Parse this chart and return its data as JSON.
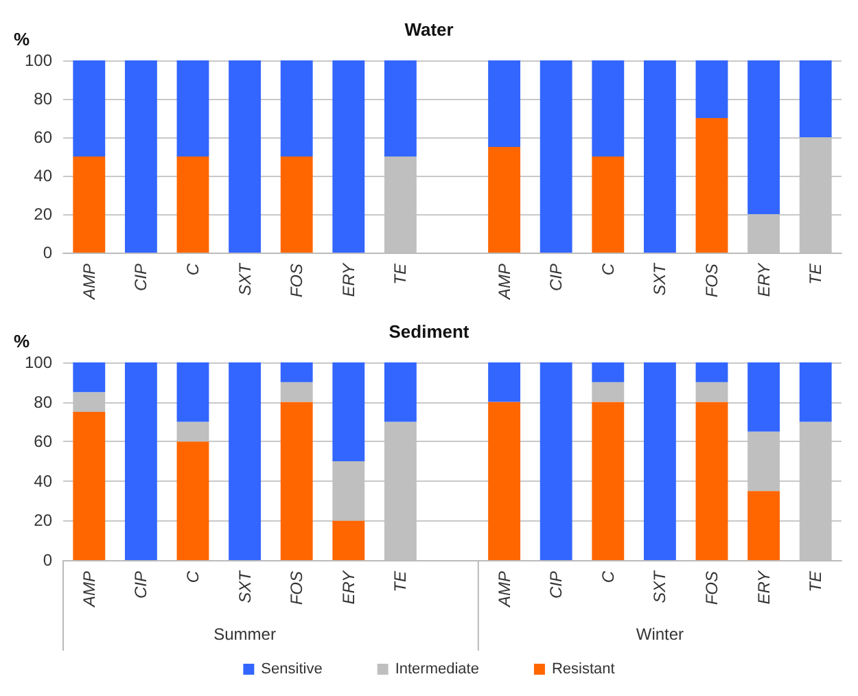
{
  "chart_data": [
    {
      "type": "bar",
      "title": "Water",
      "ylabel": "%",
      "stacked": true,
      "grid": "y",
      "legend": false,
      "categories": [
        "AMP",
        "CIP",
        "C",
        "SXT",
        "FOS",
        "ERY",
        "TE",
        null,
        "AMP",
        "CIP",
        "C",
        "SXT",
        "FOS",
        "ERY",
        "TE"
      ],
      "ylim": [
        0,
        100
      ],
      "yticks": [
        0,
        20,
        40,
        60,
        80,
        100
      ],
      "series": [
        {
          "color": "#ff6600",
          "values": [
            50,
            0,
            50,
            0,
            50,
            0,
            0,
            null,
            55,
            0,
            50,
            0,
            70,
            0,
            0
          ]
        },
        {
          "color": "#bfbfbf",
          "values": [
            0,
            0,
            0,
            0,
            0,
            0,
            50,
            null,
            0,
            0,
            0,
            0,
            0,
            20,
            60
          ]
        },
        {
          "color": "#3366ff",
          "values": [
            50,
            100,
            50,
            100,
            50,
            100,
            50,
            null,
            45,
            100,
            50,
            100,
            30,
            80,
            40
          ]
        }
      ]
    },
    {
      "type": "bar",
      "title": "Sediment",
      "ylabel": "%",
      "stacked": true,
      "grid": "y",
      "legend": "bottom",
      "categories": [
        "AMP",
        "CIP",
        "C",
        "SXT",
        "FOS",
        "ERY",
        "TE",
        null,
        "AMP",
        "CIP",
        "C",
        "SXT",
        "FOS",
        "ERY",
        "TE"
      ],
      "ylim": [
        0,
        100
      ],
      "yticks": [
        0,
        20,
        40,
        60,
        80,
        100
      ],
      "annotations": [
        "Summer",
        "Winter"
      ],
      "series": [
        {
          "name": "Resistant",
          "color": "#ff6600",
          "values": [
            75,
            0,
            60,
            0,
            80,
            20,
            0,
            null,
            80,
            0,
            80,
            0,
            80,
            35,
            0
          ]
        },
        {
          "name": "Intermediate",
          "color": "#bfbfbf",
          "values": [
            10,
            0,
            10,
            0,
            10,
            30,
            70,
            null,
            0,
            0,
            10,
            0,
            10,
            30,
            70
          ]
        },
        {
          "name": "Sensitive",
          "color": "#3366ff",
          "values": [
            15,
            100,
            30,
            100,
            10,
            50,
            30,
            null,
            20,
            100,
            10,
            100,
            10,
            35,
            30
          ]
        }
      ]
    }
  ]
}
